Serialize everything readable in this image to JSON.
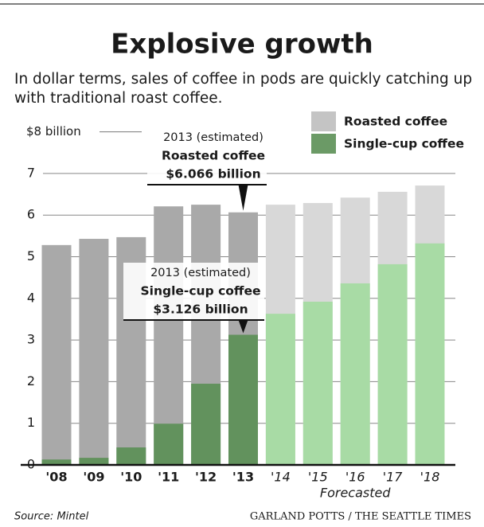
{
  "chart_data": {
    "type": "bar",
    "title": "Explosive growth",
    "subtitle": [
      "In dollar terms, sales of coffee in pods are quickly catching up",
      "with traditional roast coffee."
    ],
    "categories": [
      "'08",
      "'09",
      "'10",
      "'11",
      "'12",
      "'13",
      "'14",
      "'15",
      "'16",
      "'17",
      "'18"
    ],
    "forecast": [
      false,
      false,
      false,
      false,
      false,
      false,
      true,
      true,
      true,
      true,
      true
    ],
    "forecast_label": "Forecasted",
    "series": [
      {
        "name": "Roasted coffee",
        "color": "#c4c4c4",
        "past_color": "#a9a9a9",
        "forecast_color": "#d8d8d8",
        "values": [
          5.28,
          5.43,
          5.47,
          6.21,
          6.25,
          6.066,
          6.25,
          6.29,
          6.42,
          6.56,
          6.71
        ],
        "value_labels": [
          null,
          null,
          null,
          null,
          null,
          "$6.066 billion",
          null,
          null,
          null,
          null,
          null
        ],
        "note": "2013 (estimated)"
      },
      {
        "name": "Single-cup coffee",
        "color": "#6b9a66",
        "past_color": "#62925d",
        "forecast_color": "#a8dba5",
        "values": [
          0.13,
          0.17,
          0.42,
          0.99,
          1.95,
          3.126,
          3.63,
          3.92,
          4.36,
          4.82,
          5.32
        ],
        "value_labels": [
          null,
          null,
          null,
          null,
          null,
          "$3.126 billion",
          null,
          null,
          null,
          null,
          null
        ],
        "note": "2013 (estimated)"
      }
    ],
    "ylim": [
      0,
      8
    ],
    "yticks": [
      0,
      1,
      2,
      3,
      4,
      5,
      6,
      7,
      {
        "value": 8,
        "label": "$8 billion"
      }
    ],
    "grid": true,
    "source": "Source: Mintel",
    "credit": "GARLAND POTTS / THE SEATTLE TIMES"
  }
}
